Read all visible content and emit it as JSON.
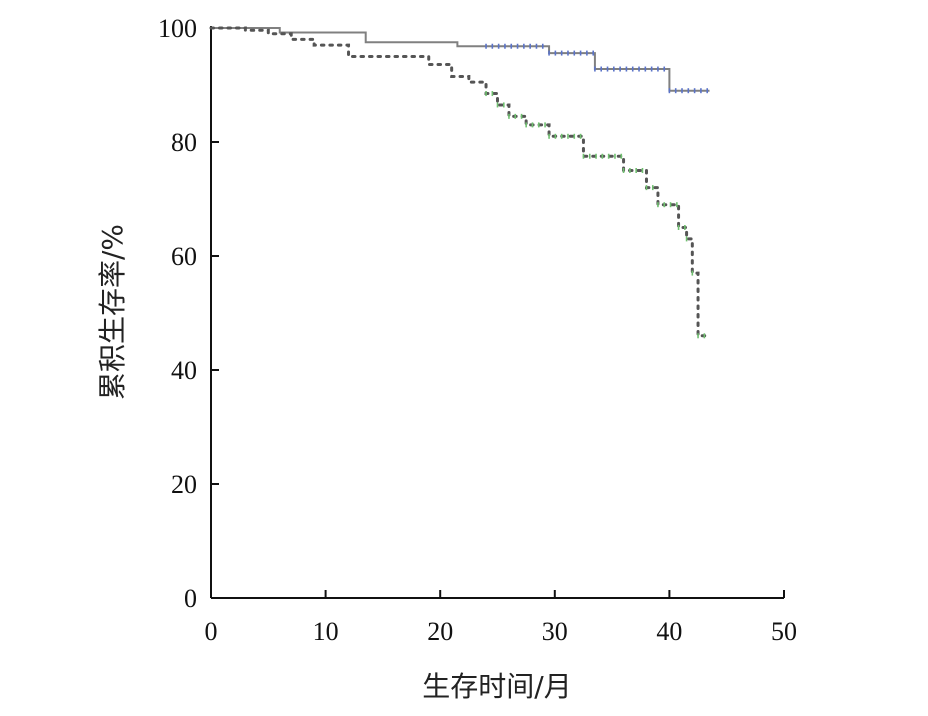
{
  "chart_data": {
    "type": "line",
    "title": "",
    "xlabel": "生存时间/月",
    "ylabel": "累积生存率/%",
    "xlim": [
      0,
      50
    ],
    "ylim": [
      0,
      100
    ],
    "x_ticks": [
      0,
      10,
      20,
      30,
      40,
      50
    ],
    "y_ticks": [
      0,
      20,
      40,
      60,
      80,
      100
    ],
    "grid": false,
    "series": [
      {
        "style": "solid-step",
        "color": "#808080",
        "censor_color": "#5a73c8",
        "points": [
          [
            0,
            100
          ],
          [
            6,
            99.2
          ],
          [
            13.5,
            97.5
          ],
          [
            21.5,
            96.8
          ],
          [
            29.5,
            95.6
          ],
          [
            33.5,
            92.8
          ],
          [
            40,
            89
          ],
          [
            43.5,
            89
          ]
        ],
        "censored_from_x": 24
      },
      {
        "style": "dotted-step",
        "color": "#555555",
        "censor_color": "#6fbf6f",
        "points": [
          [
            0,
            100
          ],
          [
            3,
            99.6
          ],
          [
            5,
            99
          ],
          [
            7,
            98
          ],
          [
            9,
            97
          ],
          [
            12,
            95
          ],
          [
            19,
            93.6
          ],
          [
            21,
            91.5
          ],
          [
            22.5,
            90.5
          ],
          [
            24,
            88.5
          ],
          [
            25,
            86.5
          ],
          [
            26,
            84.5
          ],
          [
            27.5,
            83
          ],
          [
            29.5,
            81
          ],
          [
            32.5,
            77.5
          ],
          [
            36,
            75
          ],
          [
            38,
            72
          ],
          [
            39,
            69
          ],
          [
            40.8,
            65
          ],
          [
            41.5,
            63
          ],
          [
            42,
            57
          ],
          [
            42.5,
            56
          ],
          [
            42.5,
            46
          ],
          [
            43.5,
            46
          ]
        ],
        "censored_from_x": 24
      }
    ]
  }
}
